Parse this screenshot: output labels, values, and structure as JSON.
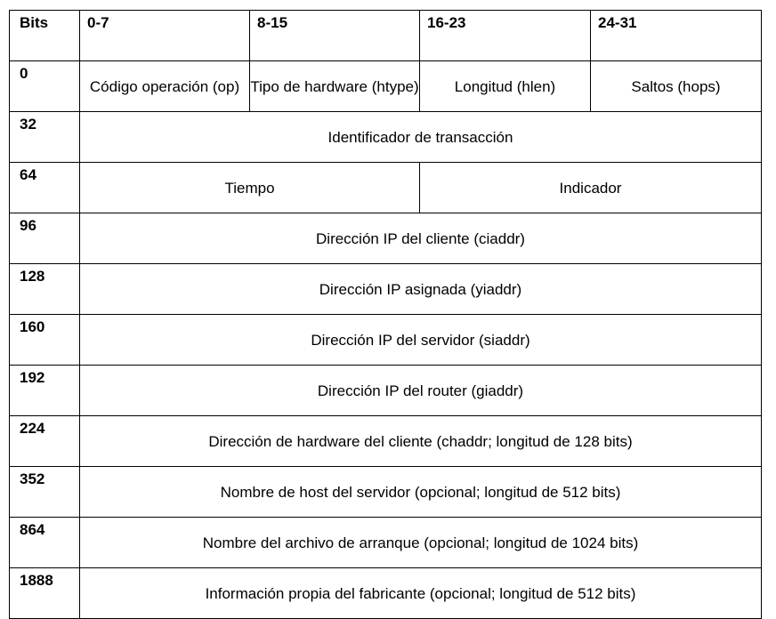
{
  "table": {
    "header": {
      "bits": "Bits",
      "cols": [
        "0-7",
        "8-15",
        "16-23",
        "24-31"
      ]
    },
    "rows": [
      {
        "offset": "0",
        "fields": [
          "Código operación (op)",
          "Tipo de hardware (htype)",
          "Longitud (hlen)",
          "Saltos (hops)"
        ]
      },
      {
        "offset": "32",
        "fields": [
          "Identificador de transacción"
        ]
      },
      {
        "offset": "64",
        "fields": [
          "Tiempo",
          "Indicador"
        ]
      },
      {
        "offset": "96",
        "fields": [
          "Dirección IP del cliente (ciaddr)"
        ]
      },
      {
        "offset": "128",
        "fields": [
          "Dirección IP asignada (yiaddr)"
        ]
      },
      {
        "offset": "160",
        "fields": [
          "Dirección IP del servidor (siaddr)"
        ]
      },
      {
        "offset": "192",
        "fields": [
          "Dirección IP del router (giaddr)"
        ]
      },
      {
        "offset": "224",
        "fields": [
          "Dirección de hardware del cliente (chaddr; longitud de 128 bits)"
        ]
      },
      {
        "offset": "352",
        "fields": [
          "Nombre de host del servidor (opcional; longitud de 512 bits)"
        ]
      },
      {
        "offset": "864",
        "fields": [
          "Nombre del archivo de arranque (opcional; longitud de 1024 bits)"
        ]
      },
      {
        "offset": "1888",
        "fields": [
          "Información propia del fabricante (opcional; longitud de 512 bits)"
        ]
      }
    ]
  }
}
